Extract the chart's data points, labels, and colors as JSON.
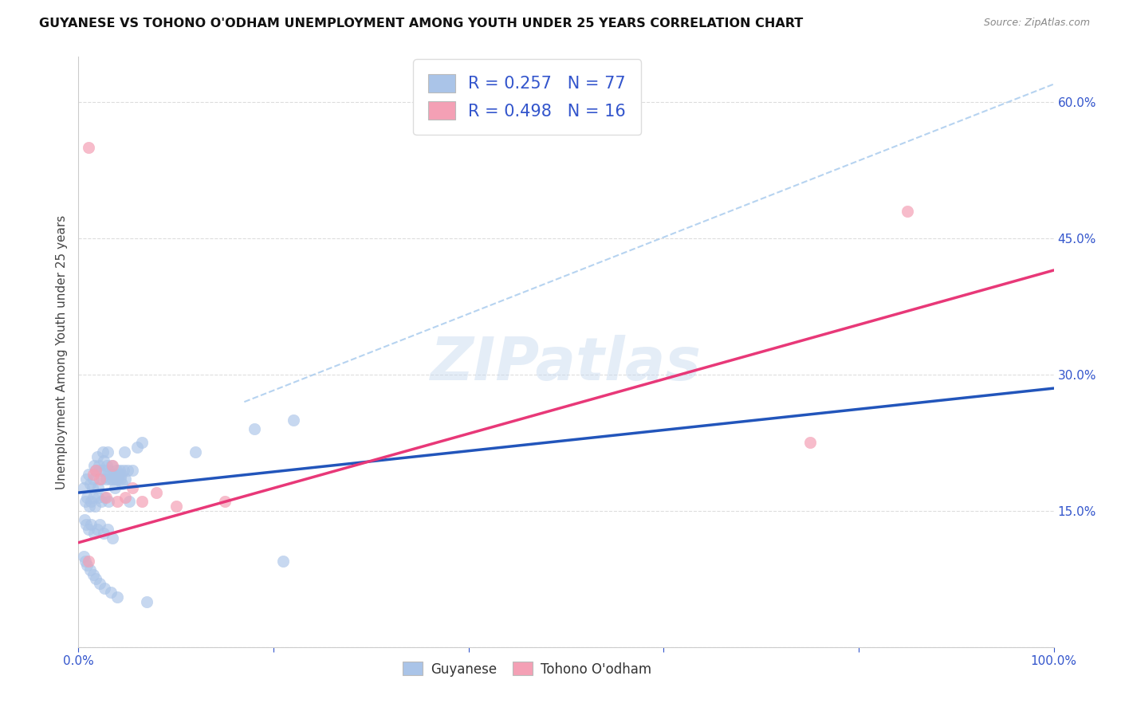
{
  "title": "GUYANESE VS TOHONO O'ODHAM UNEMPLOYMENT AMONG YOUTH UNDER 25 YEARS CORRELATION CHART",
  "source": "Source: ZipAtlas.com",
  "ylabel": "Unemployment Among Youth under 25 years",
  "xlim": [
    0.0,
    1.0
  ],
  "ylim": [
    0.0,
    0.65
  ],
  "xticks": [
    0.0,
    0.2,
    0.4,
    0.6,
    0.8,
    1.0
  ],
  "xticklabels": [
    "0.0%",
    "",
    "",
    "",
    "",
    "100.0%"
  ],
  "ytick_positions": [
    0.0,
    0.15,
    0.3,
    0.45,
    0.6
  ],
  "ytick_labels": [
    "",
    "15.0%",
    "30.0%",
    "45.0%",
    "60.0%"
  ],
  "background_color": "#ffffff",
  "watermark": "ZIPatlas",
  "guyanese_color": "#aac4e8",
  "tohono_color": "#f4a0b5",
  "guyanese_line_color": "#2255bb",
  "tohono_line_color": "#e83878",
  "guyanese_dash_color": "#aaccee",
  "grid_color": "#dddddd",
  "legend_color": "#3355cc",
  "guyanese_R": 0.257,
  "guyanese_N": 77,
  "tohono_R": 0.498,
  "tohono_N": 16,
  "guyanese_trend": [
    0.0,
    0.17,
    1.0,
    0.285
  ],
  "tohono_trend": [
    0.0,
    0.115,
    1.0,
    0.415
  ],
  "guyanese_dash": [
    0.17,
    0.27,
    1.0,
    0.62
  ],
  "guyanese_x": [
    0.005,
    0.008,
    0.01,
    0.012,
    0.014,
    0.015,
    0.016,
    0.018,
    0.019,
    0.02,
    0.021,
    0.022,
    0.023,
    0.025,
    0.026,
    0.027,
    0.028,
    0.029,
    0.03,
    0.031,
    0.032,
    0.033,
    0.034,
    0.035,
    0.036,
    0.037,
    0.038,
    0.039,
    0.04,
    0.041,
    0.042,
    0.043,
    0.044,
    0.045,
    0.046,
    0.047,
    0.048,
    0.05,
    0.052,
    0.055,
    0.007,
    0.009,
    0.011,
    0.013,
    0.015,
    0.017,
    0.02,
    0.023,
    0.027,
    0.031,
    0.006,
    0.008,
    0.01,
    0.013,
    0.016,
    0.019,
    0.022,
    0.026,
    0.03,
    0.035,
    0.005,
    0.007,
    0.009,
    0.012,
    0.015,
    0.018,
    0.022,
    0.027,
    0.033,
    0.04,
    0.06,
    0.065,
    0.07,
    0.12,
    0.18,
    0.21,
    0.22
  ],
  "guyanese_y": [
    0.175,
    0.185,
    0.19,
    0.18,
    0.175,
    0.185,
    0.2,
    0.195,
    0.21,
    0.175,
    0.2,
    0.195,
    0.185,
    0.215,
    0.205,
    0.195,
    0.185,
    0.2,
    0.215,
    0.195,
    0.185,
    0.19,
    0.2,
    0.185,
    0.19,
    0.175,
    0.185,
    0.195,
    0.185,
    0.19,
    0.195,
    0.185,
    0.19,
    0.18,
    0.195,
    0.215,
    0.185,
    0.195,
    0.16,
    0.195,
    0.16,
    0.165,
    0.155,
    0.16,
    0.165,
    0.155,
    0.165,
    0.16,
    0.165,
    0.16,
    0.14,
    0.135,
    0.13,
    0.135,
    0.125,
    0.13,
    0.135,
    0.125,
    0.13,
    0.12,
    0.1,
    0.095,
    0.09,
    0.085,
    0.08,
    0.075,
    0.07,
    0.065,
    0.06,
    0.055,
    0.22,
    0.225,
    0.05,
    0.215,
    0.24,
    0.095,
    0.25
  ],
  "tohono_x": [
    0.01,
    0.015,
    0.018,
    0.022,
    0.028,
    0.035,
    0.04,
    0.048,
    0.055,
    0.065,
    0.08,
    0.1,
    0.15,
    0.75,
    0.85,
    0.01
  ],
  "tohono_y": [
    0.55,
    0.19,
    0.195,
    0.185,
    0.165,
    0.2,
    0.16,
    0.165,
    0.175,
    0.16,
    0.17,
    0.155,
    0.16,
    0.225,
    0.48,
    0.095
  ]
}
